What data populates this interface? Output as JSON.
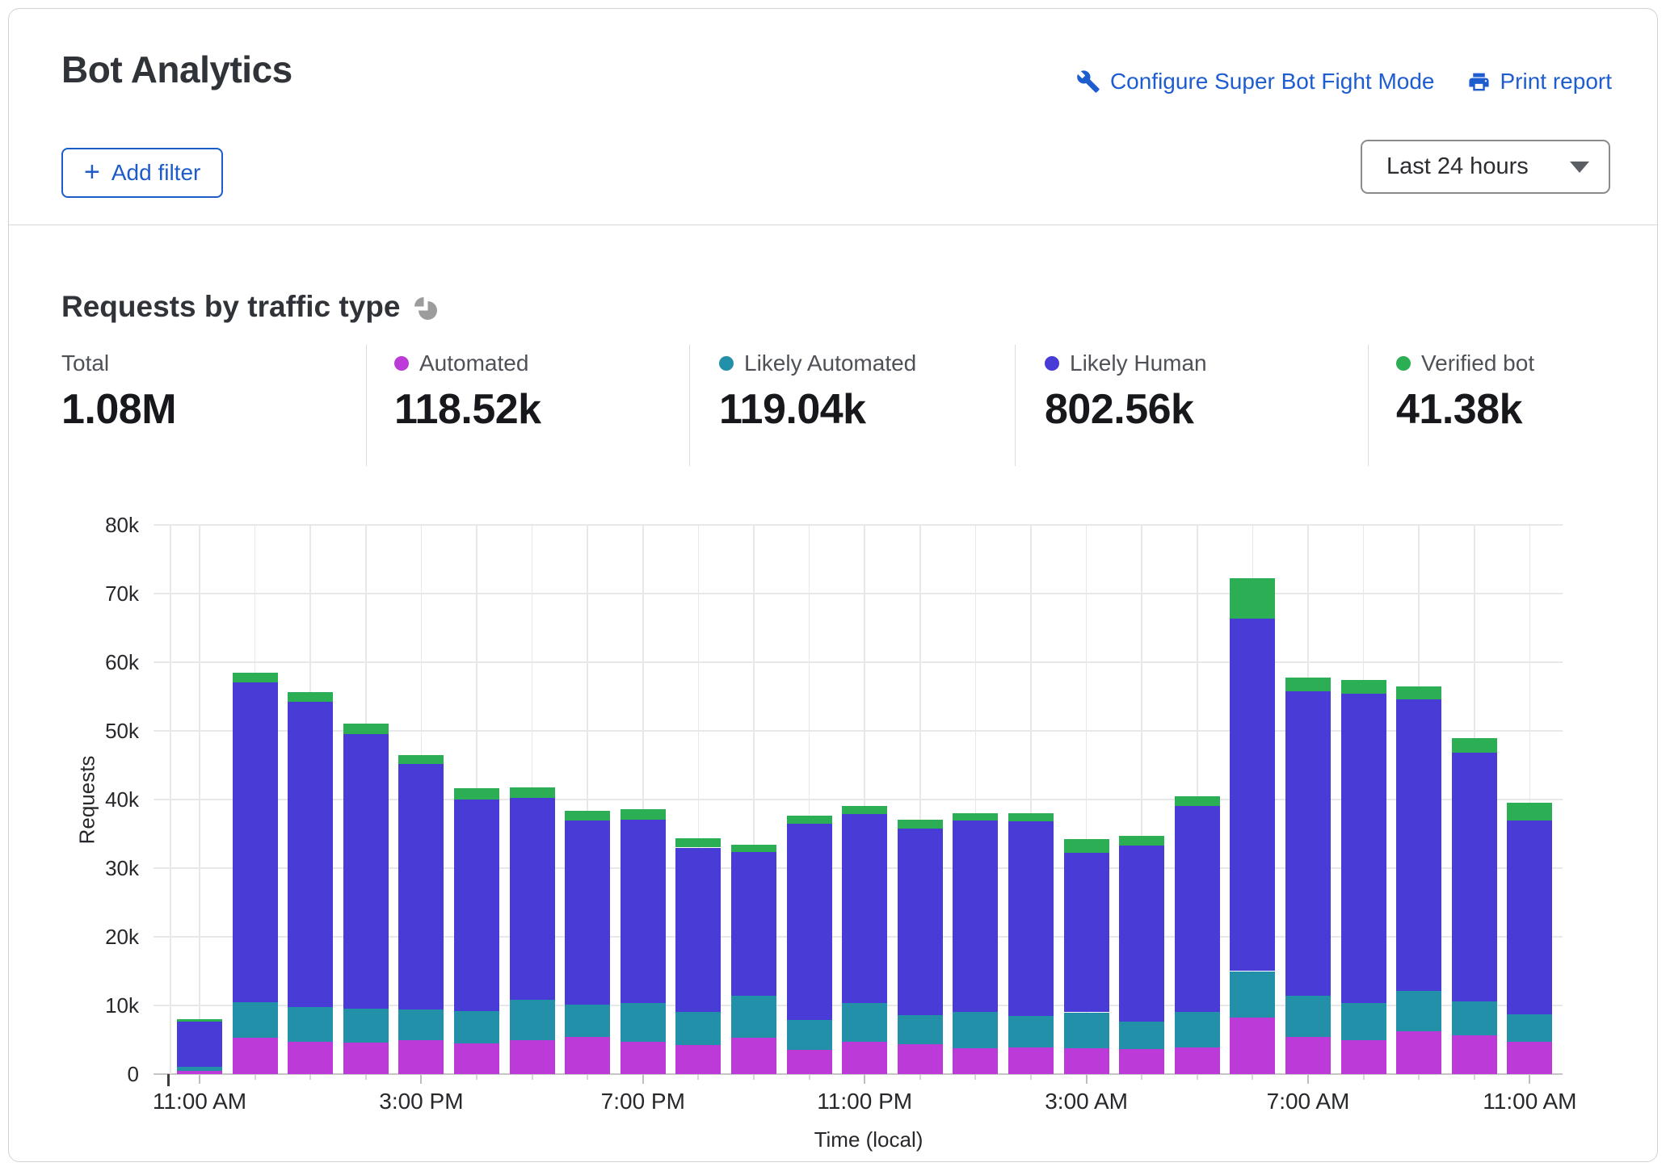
{
  "header": {
    "title": "Bot Analytics",
    "configure_link": "Configure Super Bot Fight Mode",
    "print_link": "Print report",
    "add_filter_label": "Add filter",
    "plus": "+",
    "time_range_selected": "Last 24 hours"
  },
  "colors": {
    "link_blue": "#1e5dd0",
    "automated": "#bb3ad8",
    "likely_automated": "#2190a8",
    "likely_human": "#483bd6",
    "verified_bot": "#2cae55"
  },
  "section": {
    "title": "Requests by traffic type"
  },
  "stats": {
    "items": [
      {
        "label": "Total",
        "value": "1.08M",
        "color": null
      },
      {
        "label": "Automated",
        "value": "118.52k",
        "color": "#bb3ad8"
      },
      {
        "label": "Likely Automated",
        "value": "119.04k",
        "color": "#2190a8"
      },
      {
        "label": "Likely Human",
        "value": "802.56k",
        "color": "#483bd6"
      },
      {
        "label": "Verified bot",
        "value": "41.38k",
        "color": "#2cae55"
      }
    ]
  },
  "chart_data": {
    "type": "bar",
    "stacked": true,
    "title": "Requests by traffic type",
    "xlabel": "Time (local)",
    "ylabel": "Requests",
    "ylim": [
      0,
      80000
    ],
    "grid": true,
    "ytick_values": [
      0,
      10000,
      20000,
      30000,
      40000,
      50000,
      60000,
      70000,
      80000
    ],
    "ytick_labels": [
      "0",
      "10k",
      "20k",
      "30k",
      "40k",
      "50k",
      "60k",
      "70k",
      "80k"
    ],
    "categories": [
      "11:00 AM",
      "12:00 PM",
      "1:00 PM",
      "2:00 PM",
      "3:00 PM",
      "4:00 PM",
      "5:00 PM",
      "6:00 PM",
      "7:00 PM",
      "8:00 PM",
      "9:00 PM",
      "10:00 PM",
      "11:00 PM",
      "12:00 AM",
      "1:00 AM",
      "2:00 AM",
      "3:00 AM",
      "4:00 AM",
      "5:00 AM",
      "6:00 AM",
      "7:00 AM",
      "8:00 AM",
      "9:00 AM",
      "10:00 AM",
      "11:00 AM"
    ],
    "xtick_indices": [
      0,
      4,
      8,
      12,
      16,
      20,
      24
    ],
    "series": [
      {
        "name": "Automated",
        "color": "#bb3ad8",
        "values": [
          500,
          5300,
          4700,
          4600,
          4900,
          4500,
          4900,
          5400,
          4700,
          4200,
          5300,
          3500,
          4700,
          4300,
          3800,
          3900,
          3800,
          3600,
          3900,
          8200,
          5400,
          4900,
          6200,
          5600,
          4700
        ]
      },
      {
        "name": "Likely Automated",
        "color": "#2190a8",
        "values": [
          600,
          5200,
          5100,
          4900,
          4500,
          4700,
          5900,
          4700,
          5700,
          4900,
          6100,
          4400,
          5700,
          4300,
          5300,
          4600,
          5200,
          4100,
          5200,
          6800,
          6000,
          5400,
          5900,
          5000,
          4000
        ]
      },
      {
        "name": "Likely Human",
        "color": "#483bd6",
        "values": [
          6600,
          46600,
          44400,
          40000,
          35800,
          30800,
          29400,
          26800,
          26700,
          23900,
          21000,
          28600,
          27500,
          27200,
          27800,
          28300,
          23200,
          25600,
          30000,
          51300,
          44400,
          45100,
          42500,
          36200,
          28200
        ]
      },
      {
        "name": "Verified bot",
        "color": "#2cae55",
        "values": [
          300,
          1400,
          1500,
          1600,
          1300,
          1700,
          1600,
          1500,
          1500,
          1400,
          1000,
          1200,
          1200,
          1300,
          1100,
          1200,
          2000,
          1400,
          1400,
          5900,
          2000,
          2000,
          1900,
          2100,
          2600
        ]
      }
    ],
    "totals_shown": {
      "total": "1.08M",
      "automated": "118.52k",
      "likely_automated": "119.04k",
      "likely_human": "802.56k",
      "verified_bot": "41.38k"
    }
  }
}
